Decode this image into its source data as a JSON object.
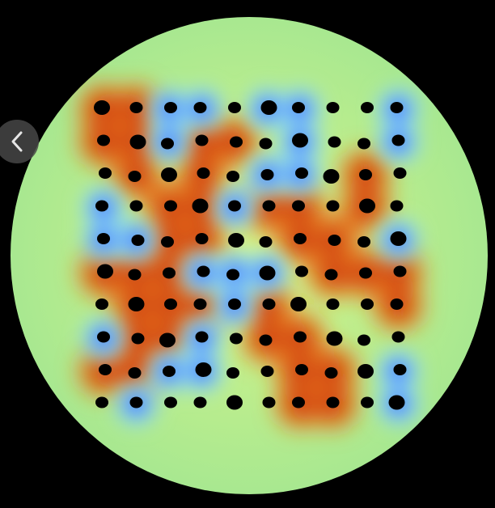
{
  "viewer": {
    "background": "#000000",
    "field_base_color": "#c8f28a",
    "field_edge_color": "#a9e88a",
    "hole_color": "#000000",
    "warm_colors": [
      "#ffe36a",
      "#f07a1c",
      "#c8300a",
      "#8a1a05"
    ],
    "cool_colors": [
      "#8fe0f0",
      "#3f74ff",
      "#1a1ab0"
    ],
    "grid": {
      "rows": 10,
      "cols": 10
    },
    "warm_regions": [
      [
        0,
        0
      ],
      [
        0,
        1
      ],
      [
        1,
        0
      ],
      [
        1,
        1
      ],
      [
        2,
        1
      ],
      [
        1,
        3
      ],
      [
        1,
        4
      ],
      [
        2,
        3
      ],
      [
        3,
        2
      ],
      [
        3,
        3
      ],
      [
        4,
        2
      ],
      [
        4,
        3
      ],
      [
        5,
        2
      ],
      [
        5,
        1
      ],
      [
        5,
        0
      ],
      [
        6,
        1
      ],
      [
        6,
        2
      ],
      [
        7,
        1
      ],
      [
        7,
        2
      ],
      [
        8,
        1
      ],
      [
        8,
        0
      ],
      [
        3,
        5
      ],
      [
        3,
        6
      ],
      [
        4,
        6
      ],
      [
        4,
        7
      ],
      [
        5,
        7
      ],
      [
        5,
        8
      ],
      [
        5,
        9
      ],
      [
        6,
        9
      ],
      [
        7,
        5
      ],
      [
        7,
        6
      ],
      [
        8,
        6
      ],
      [
        8,
        7
      ],
      [
        9,
        7
      ],
      [
        9,
        6
      ],
      [
        2,
        8
      ],
      [
        3,
        8
      ],
      [
        6,
        3
      ],
      [
        6,
        5
      ]
    ],
    "cool_regions": [
      [
        0,
        2
      ],
      [
        0,
        3
      ],
      [
        1,
        2
      ],
      [
        0,
        5
      ],
      [
        0,
        6
      ],
      [
        1,
        6
      ],
      [
        2,
        6
      ],
      [
        2,
        5
      ],
      [
        1,
        9
      ],
      [
        0,
        9
      ],
      [
        3,
        0
      ],
      [
        4,
        0
      ],
      [
        4,
        1
      ],
      [
        5,
        4
      ],
      [
        5,
        5
      ],
      [
        6,
        4
      ],
      [
        5,
        3
      ],
      [
        7,
        3
      ],
      [
        8,
        2
      ],
      [
        8,
        3
      ],
      [
        7,
        0
      ],
      [
        4,
        9
      ],
      [
        8,
        9
      ],
      [
        9,
        9
      ],
      [
        3,
        4
      ],
      [
        9,
        1
      ]
    ],
    "back_icon": "chevron-left-icon"
  }
}
